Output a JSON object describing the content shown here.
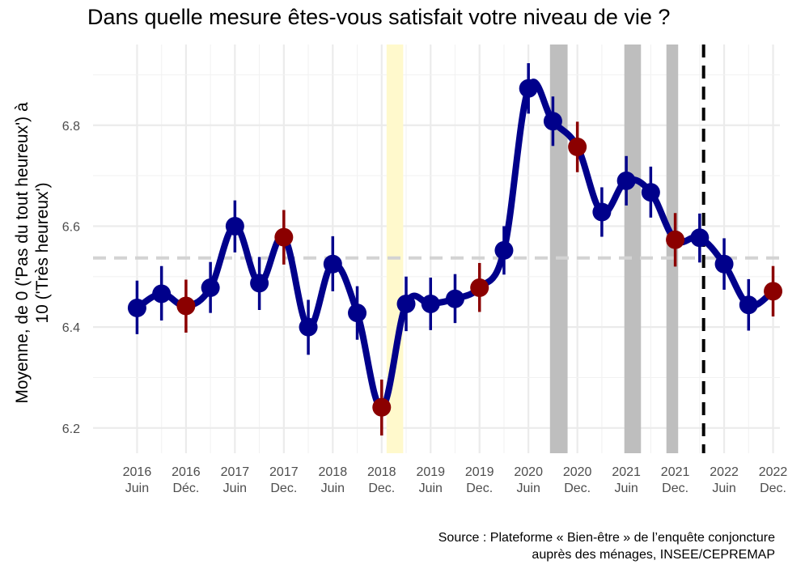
{
  "chart_data": {
    "type": "line",
    "title": "Dans quelle mesure êtes-vous satisfait votre niveau de vie ?",
    "ylabel_lines": [
      "Moyenne, de 0 ('Pas du tout heureux') à",
      "10 ('Très heureux')"
    ],
    "xlabel": "",
    "caption_lines": [
      "Source : Plateforme « Bien-être » de l’enquête conjoncture",
      "auprès des ménages, INSEE/CEPREMAP"
    ],
    "ylim": [
      6.15,
      6.96
    ],
    "yticks": [
      6.2,
      6.4,
      6.6,
      6.8
    ],
    "xlim": [
      2016.05,
      2023.07
    ],
    "xticks": [
      {
        "x": 2016.5,
        "label": [
          "2016",
          "Juin"
        ]
      },
      {
        "x": 2017.0,
        "label": [
          "2016",
          "Déc."
        ]
      },
      {
        "x": 2017.5,
        "label": [
          "2017",
          "Juin"
        ]
      },
      {
        "x": 2018.0,
        "label": [
          "2017",
          "Dec."
        ]
      },
      {
        "x": 2018.5,
        "label": [
          "2018",
          "Juin"
        ]
      },
      {
        "x": 2019.0,
        "label": [
          "2018",
          "Dec."
        ]
      },
      {
        "x": 2019.5,
        "label": [
          "2019",
          "Juin"
        ]
      },
      {
        "x": 2020.0,
        "label": [
          "2019",
          "Dec."
        ]
      },
      {
        "x": 2020.5,
        "label": [
          "2020",
          "Juin"
        ]
      },
      {
        "x": 2021.0,
        "label": [
          "2020",
          "Dec."
        ]
      },
      {
        "x": 2021.5,
        "label": [
          "2021",
          "Juin"
        ]
      },
      {
        "x": 2022.0,
        "label": [
          "2021",
          "Dec."
        ]
      },
      {
        "x": 2022.5,
        "label": [
          "2022",
          "Juin"
        ]
      },
      {
        "x": 2023.0,
        "label": [
          "2022",
          "Dec."
        ]
      }
    ],
    "grid": true,
    "mean_line": 6.537,
    "vertical_dashed_x": 2022.29,
    "highlight_bands": [
      {
        "from": 2019.05,
        "to": 2019.22,
        "color": "#FFF9CC"
      }
    ],
    "shaded_bands": [
      {
        "from": 2020.72,
        "to": 2020.9,
        "color": "#BEBEBE"
      },
      {
        "from": 2021.48,
        "to": 2021.65,
        "color": "#BEBEBE"
      },
      {
        "from": 2021.91,
        "to": 2022.03,
        "color": "#BEBEBE"
      }
    ],
    "series": [
      {
        "color": "#00008B",
        "december_color": "#8B0000",
        "points": [
          {
            "x": 2016.5,
            "y": 6.438,
            "lo": 6.386,
            "hi": 6.492,
            "dec": false
          },
          {
            "x": 2016.75,
            "y": 6.466,
            "lo": 6.413,
            "hi": 6.521,
            "dec": false
          },
          {
            "x": 2017.0,
            "y": 6.442,
            "lo": 6.389,
            "hi": 6.494,
            "dec": true
          },
          {
            "x": 2017.25,
            "y": 6.478,
            "lo": 6.428,
            "hi": 6.529,
            "dec": false
          },
          {
            "x": 2017.5,
            "y": 6.6,
            "lo": 6.548,
            "hi": 6.651,
            "dec": false
          },
          {
            "x": 2017.75,
            "y": 6.487,
            "lo": 6.434,
            "hi": 6.539,
            "dec": false
          },
          {
            "x": 2018.0,
            "y": 6.578,
            "lo": 6.524,
            "hi": 6.632,
            "dec": true
          },
          {
            "x": 2018.25,
            "y": 6.4,
            "lo": 6.345,
            "hi": 6.454,
            "dec": false
          },
          {
            "x": 2018.5,
            "y": 6.525,
            "lo": 6.471,
            "hi": 6.58,
            "dec": false
          },
          {
            "x": 2018.75,
            "y": 6.428,
            "lo": 6.375,
            "hi": 6.481,
            "dec": false
          },
          {
            "x": 2019.0,
            "y": 6.241,
            "lo": 6.185,
            "hi": 6.296,
            "dec": true
          },
          {
            "x": 2019.25,
            "y": 6.446,
            "lo": 6.392,
            "hi": 6.5,
            "dec": false
          },
          {
            "x": 2019.5,
            "y": 6.446,
            "lo": 6.394,
            "hi": 6.498,
            "dec": false
          },
          {
            "x": 2019.75,
            "y": 6.456,
            "lo": 6.408,
            "hi": 6.505,
            "dec": false
          },
          {
            "x": 2020.0,
            "y": 6.478,
            "lo": 6.43,
            "hi": 6.527,
            "dec": true
          },
          {
            "x": 2020.25,
            "y": 6.552,
            "lo": 6.504,
            "hi": 6.6,
            "dec": false
          },
          {
            "x": 2020.5,
            "y": 6.873,
            "lo": 6.823,
            "hi": 6.923,
            "dec": false
          },
          {
            "x": 2020.75,
            "y": 6.808,
            "lo": 6.759,
            "hi": 6.857,
            "dec": false
          },
          {
            "x": 2021.0,
            "y": 6.757,
            "lo": 6.707,
            "hi": 6.807,
            "dec": true
          },
          {
            "x": 2021.25,
            "y": 6.628,
            "lo": 6.579,
            "hi": 6.677,
            "dec": false
          },
          {
            "x": 2021.5,
            "y": 6.69,
            "lo": 6.641,
            "hi": 6.739,
            "dec": false
          },
          {
            "x": 2021.75,
            "y": 6.667,
            "lo": 6.617,
            "hi": 6.718,
            "dec": false
          },
          {
            "x": 2022.0,
            "y": 6.573,
            "lo": 6.52,
            "hi": 6.626,
            "dec": true
          },
          {
            "x": 2022.25,
            "y": 6.577,
            "lo": 6.528,
            "hi": 6.625,
            "dec": false
          },
          {
            "x": 2022.5,
            "y": 6.525,
            "lo": 6.474,
            "hi": 6.576,
            "dec": false
          },
          {
            "x": 2022.75,
            "y": 6.444,
            "lo": 6.393,
            "hi": 6.495,
            "dec": false
          },
          {
            "x": 2023.0,
            "y": 6.471,
            "lo": 6.421,
            "hi": 6.521,
            "dec": true
          }
        ]
      }
    ]
  }
}
